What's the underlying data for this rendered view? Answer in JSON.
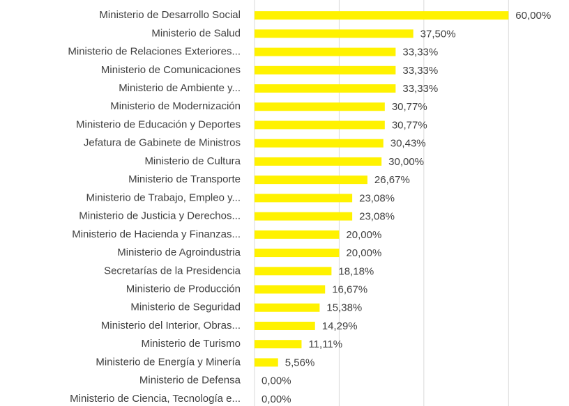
{
  "chart_data": {
    "type": "hbar",
    "categories": [
      "Ministerio de Desarrollo Social",
      "Ministerio de Salud",
      "Ministerio de Relaciones Exteriores...",
      "Ministerio de Comunicaciones",
      "Ministerio de Ambiente y...",
      "Ministerio de Modernización",
      "Ministerio de Educación y Deportes",
      "Jefatura de Gabinete de Ministros",
      "Ministerio de Cultura",
      "Ministerio de Transporte",
      "Ministerio de Trabajo, Empleo y...",
      "Ministerio de Justicia y Derechos...",
      "Ministerio de Hacienda y Finanzas...",
      "Ministerio de Agroindustria",
      "Secretarías de la Presidencia",
      "Ministerio de Producción",
      "Ministerio de Seguridad",
      "Ministerio del Interior, Obras...",
      "Ministerio de Turismo",
      "Ministerio de Energía y Minería",
      "Ministerio de Defensa",
      "Ministerio de Ciencia, Tecnología e..."
    ],
    "values": [
      60.0,
      37.5,
      33.33,
      33.33,
      33.33,
      30.77,
      30.77,
      30.43,
      30.0,
      26.67,
      23.08,
      23.08,
      20.0,
      20.0,
      18.18,
      16.67,
      15.38,
      14.29,
      11.11,
      5.56,
      0.0,
      0.0
    ],
    "value_labels": [
      "60,00%",
      "37,50%",
      "33,33%",
      "33,33%",
      "33,33%",
      "30,77%",
      "30,77%",
      "30,43%",
      "30,00%",
      "26,67%",
      "23,08%",
      "23,08%",
      "20,00%",
      "20,00%",
      "18,18%",
      "16,67%",
      "15,38%",
      "14,29%",
      "11,11%",
      "5,56%",
      "0,00%",
      "0,00%"
    ],
    "color": "#fff200",
    "xlim": [
      0,
      70
    ],
    "xticks": [
      0,
      20,
      40,
      60
    ],
    "grid": true
  }
}
